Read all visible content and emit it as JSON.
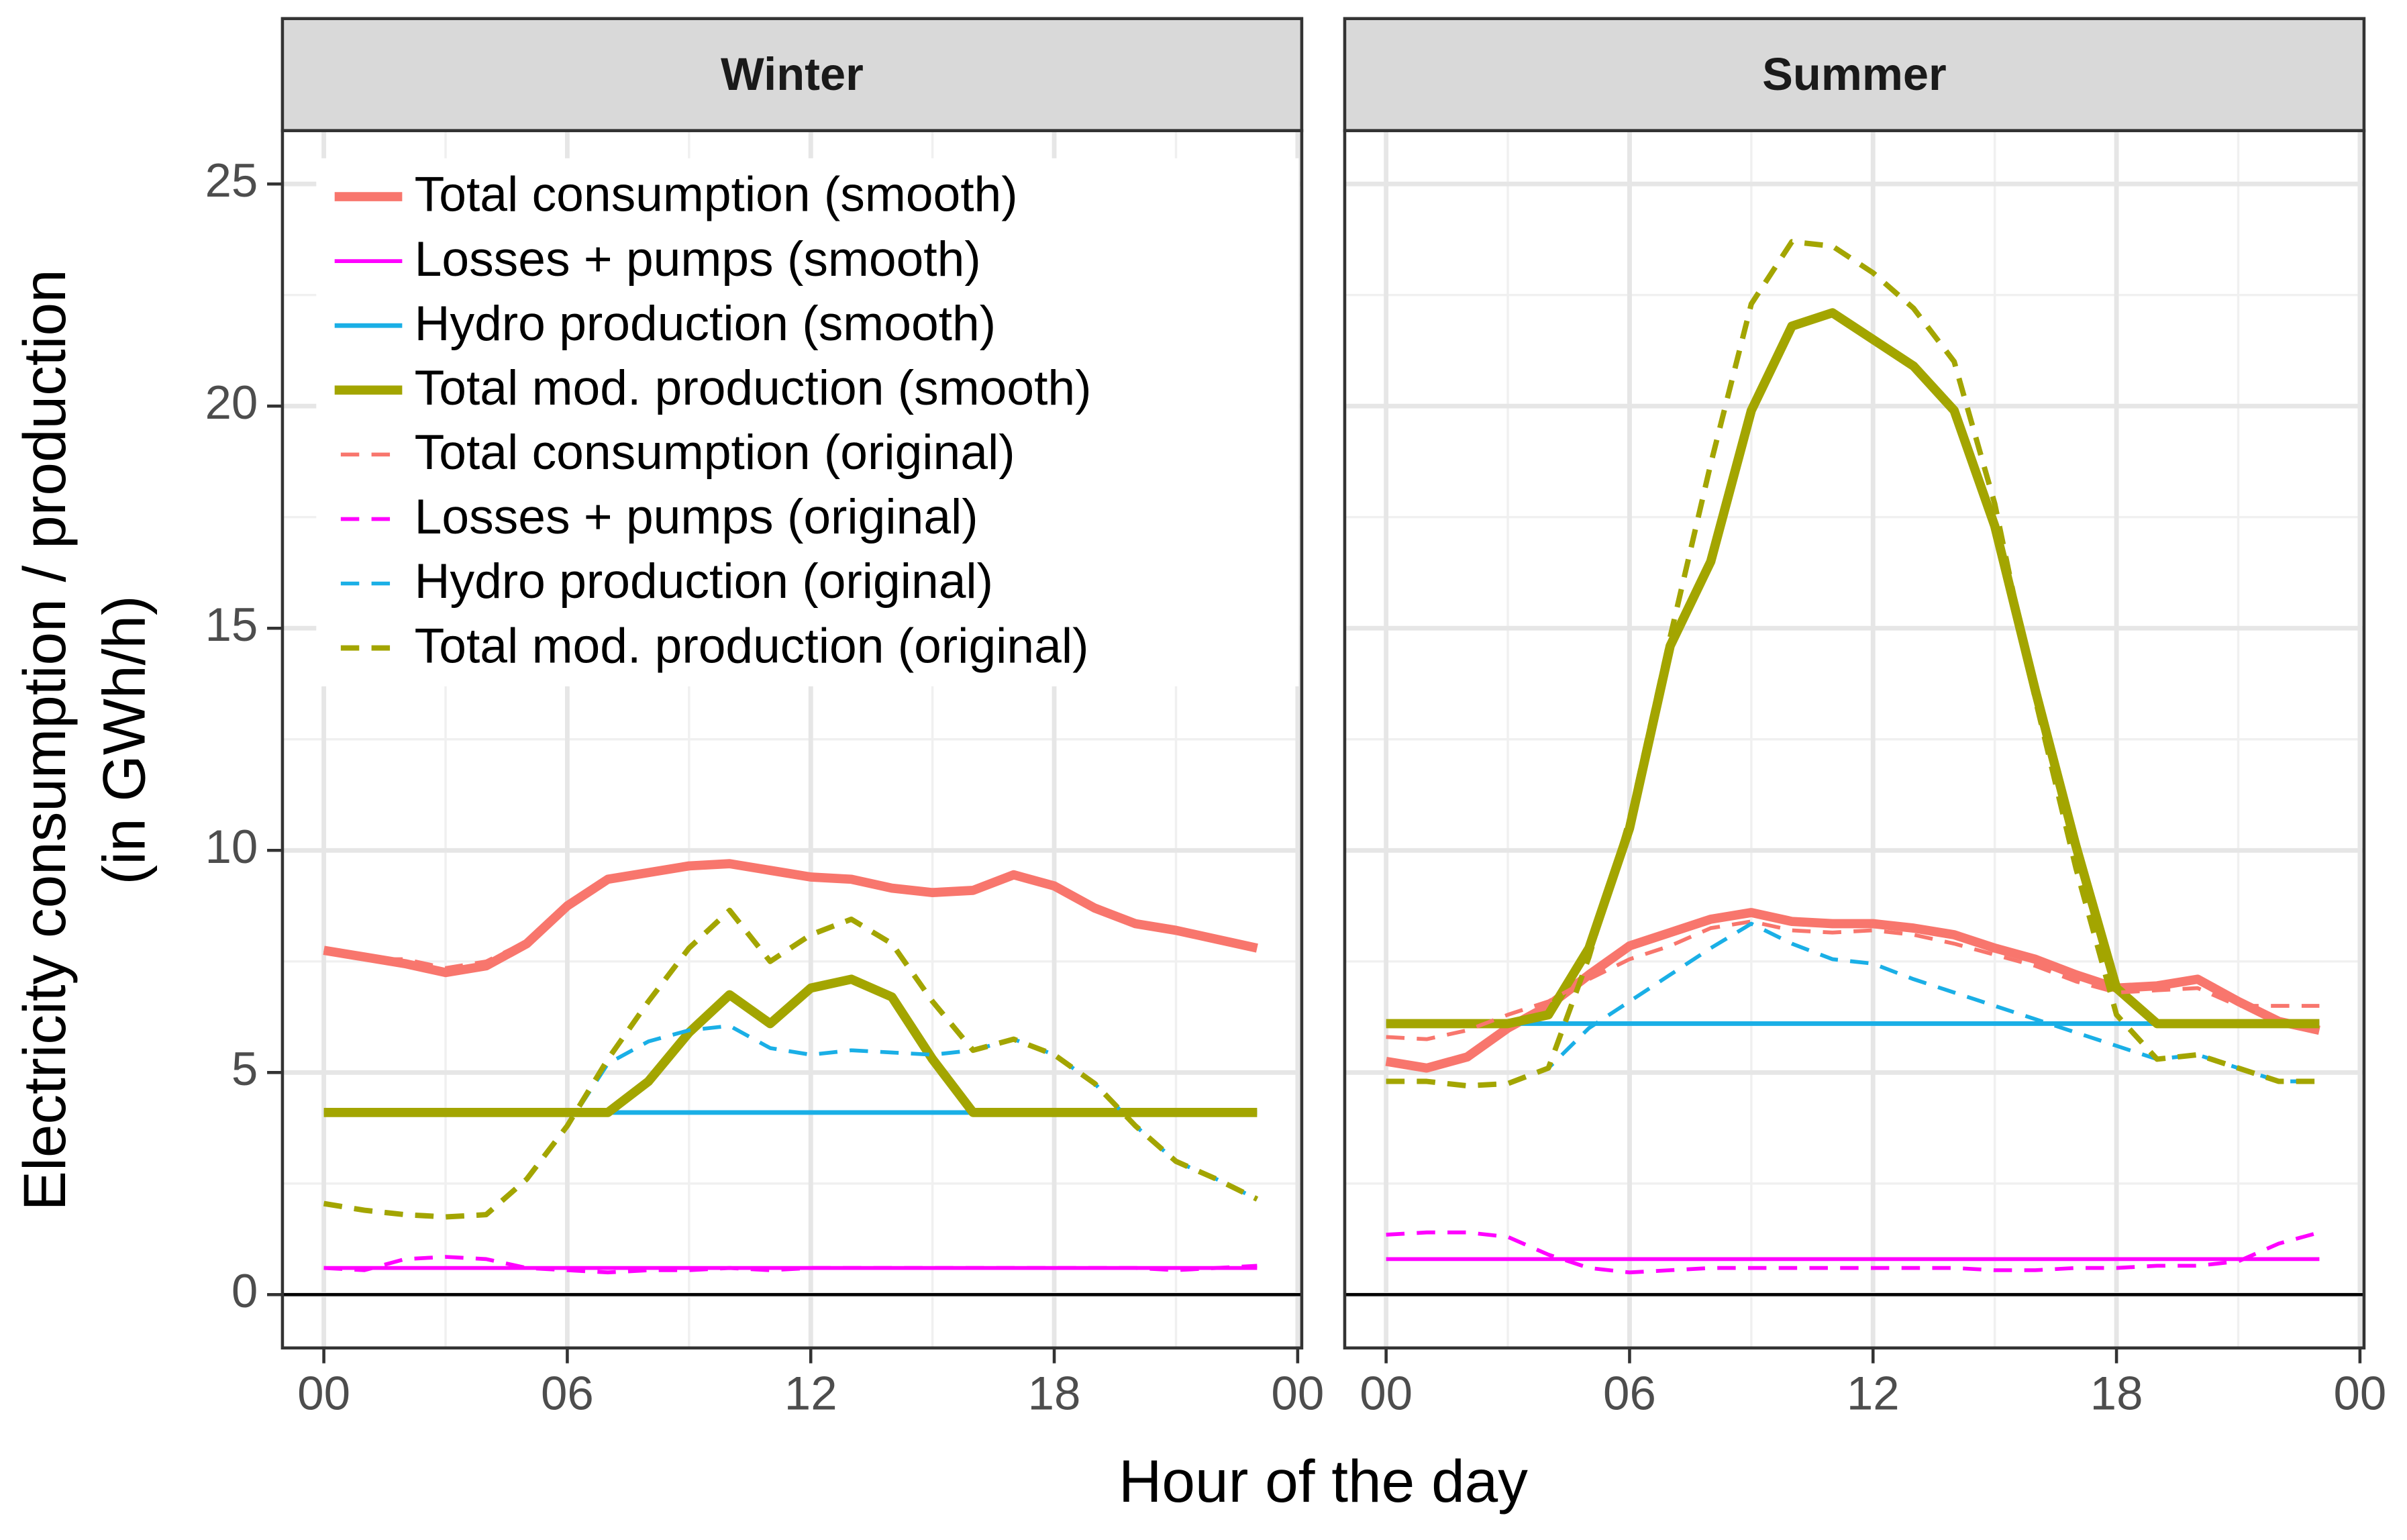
{
  "chart_data": [
    {
      "type": "line",
      "title": "Winter",
      "x": [
        0,
        1,
        2,
        3,
        4,
        5,
        6,
        7,
        8,
        9,
        10,
        11,
        12,
        13,
        14,
        15,
        16,
        17,
        18,
        19,
        20,
        21,
        22,
        23
      ],
      "xlim": [
        -1.02,
        24.1
      ],
      "xticks": [
        {
          "value": 0,
          "label": "00"
        },
        {
          "value": 6,
          "label": "06"
        },
        12,
        18,
        {
          "value": 24,
          "label": "00"
        }
      ],
      "ylim": [
        -1.2,
        26.2
      ],
      "yticks": [
        0,
        5,
        10,
        15,
        20,
        25
      ],
      "grid": true,
      "hline": 0,
      "legend": "upper left",
      "series": [
        {
          "name": "Total consumption (smooth)",
          "color": "#F8766D",
          "width": 6,
          "dashed": false,
          "values": [
            7.75,
            7.6,
            7.45,
            7.25,
            7.4,
            7.9,
            8.75,
            9.35,
            9.5,
            9.65,
            9.7,
            9.55,
            9.4,
            9.35,
            9.15,
            9.05,
            9.1,
            9.45,
            9.2,
            8.7,
            8.35,
            8.2,
            8.0,
            7.8
          ]
        },
        {
          "name": "Losses + pumps (smooth)",
          "color": "#FF00FF",
          "width": 2.5,
          "dashed": false,
          "values": [
            0.6,
            0.6,
            0.6,
            0.6,
            0.6,
            0.6,
            0.6,
            0.6,
            0.6,
            0.6,
            0.6,
            0.6,
            0.6,
            0.6,
            0.6,
            0.6,
            0.6,
            0.6,
            0.6,
            0.6,
            0.6,
            0.6,
            0.6,
            0.6
          ]
        },
        {
          "name": "Hydro production (smooth)",
          "color": "#1AAFE6",
          "width": 3,
          "dashed": false,
          "values": [
            4.1,
            4.1,
            4.1,
            4.1,
            4.1,
            4.1,
            4.1,
            4.1,
            4.1,
            4.1,
            4.1,
            4.1,
            4.1,
            4.1,
            4.1,
            4.1,
            4.1,
            4.1,
            4.1,
            4.1,
            4.1,
            4.1,
            4.1,
            4.1
          ]
        },
        {
          "name": "Total mod. production (smooth)",
          "color": "#A3A500",
          "width": 6,
          "dashed": false,
          "values": [
            4.1,
            4.1,
            4.1,
            4.1,
            4.1,
            4.1,
            4.1,
            4.1,
            4.8,
            5.9,
            6.75,
            6.1,
            6.9,
            7.1,
            6.7,
            5.3,
            4.1,
            4.1,
            4.1,
            4.1,
            4.1,
            4.1,
            4.1,
            4.1
          ]
        },
        {
          "name": "Total consumption (original)",
          "color": "#F8766D",
          "width": 2.5,
          "dashed": true,
          "values": [
            7.75,
            7.55,
            7.55,
            7.35,
            7.5,
            7.95,
            8.75,
            9.35,
            9.5,
            9.65,
            9.7,
            9.55,
            9.4,
            9.35,
            9.15,
            9.05,
            9.1,
            9.45,
            9.2,
            8.7,
            8.35,
            8.2,
            8.0,
            7.8
          ]
        },
        {
          "name": "Losses + pumps (original)",
          "color": "#FF00FF",
          "width": 2.5,
          "dashed": true,
          "values": [
            0.6,
            0.55,
            0.8,
            0.85,
            0.8,
            0.6,
            0.55,
            0.5,
            0.55,
            0.55,
            0.6,
            0.55,
            0.6,
            0.6,
            0.6,
            0.6,
            0.6,
            0.6,
            0.6,
            0.6,
            0.6,
            0.55,
            0.6,
            0.65
          ]
        },
        {
          "name": "Hydro production (original)",
          "color": "#1AAFE6",
          "width": 2.5,
          "dashed": true,
          "values": [
            2.05,
            1.9,
            1.8,
            1.75,
            1.8,
            2.6,
            3.8,
            5.2,
            5.7,
            5.95,
            6.05,
            5.55,
            5.4,
            5.5,
            5.45,
            5.4,
            5.5,
            5.75,
            5.4,
            4.75,
            3.8,
            3.0,
            2.6,
            2.15
          ]
        },
        {
          "name": "Total mod. production (original)",
          "color": "#A3A500",
          "width": 3.5,
          "dashed": true,
          "values": [
            2.05,
            1.9,
            1.8,
            1.75,
            1.8,
            2.6,
            3.8,
            5.3,
            6.6,
            7.8,
            8.65,
            7.5,
            8.1,
            8.45,
            7.9,
            6.6,
            5.5,
            5.75,
            5.4,
            4.75,
            3.8,
            3.0,
            2.6,
            2.15
          ]
        }
      ]
    },
    {
      "type": "line",
      "title": "Summer",
      "x": [
        0,
        1,
        2,
        3,
        4,
        5,
        6,
        7,
        8,
        9,
        10,
        11,
        12,
        13,
        14,
        15,
        16,
        17,
        18,
        19,
        20,
        21,
        22,
        23
      ],
      "xlim": [
        -1.02,
        24.1
      ],
      "xticks": [
        {
          "value": 0,
          "label": "00"
        },
        {
          "value": 6,
          "label": "06"
        },
        12,
        18,
        {
          "value": 24,
          "label": "00"
        }
      ],
      "ylim": [
        -1.2,
        26.2
      ],
      "yticks": [
        0,
        5,
        10,
        15,
        20,
        25
      ],
      "grid": true,
      "hline": 0,
      "series": [
        {
          "color": "#F8766D",
          "width": 6,
          "dashed": false,
          "values": [
            5.25,
            5.1,
            5.35,
            6.0,
            6.5,
            7.2,
            7.85,
            8.15,
            8.45,
            8.6,
            8.4,
            8.35,
            8.35,
            8.25,
            8.1,
            7.8,
            7.55,
            7.2,
            6.9,
            6.95,
            7.1,
            6.6,
            6.15,
            5.95
          ]
        },
        {
          "color": "#FF00FF",
          "width": 2.5,
          "dashed": false,
          "values": [
            0.8,
            0.8,
            0.8,
            0.8,
            0.8,
            0.8,
            0.8,
            0.8,
            0.8,
            0.8,
            0.8,
            0.8,
            0.8,
            0.8,
            0.8,
            0.8,
            0.8,
            0.8,
            0.8,
            0.8,
            0.8,
            0.8,
            0.8,
            0.8
          ]
        },
        {
          "color": "#1AAFE6",
          "width": 3,
          "dashed": false,
          "values": [
            6.1,
            6.1,
            6.1,
            6.1,
            6.1,
            6.1,
            6.1,
            6.1,
            6.1,
            6.1,
            6.1,
            6.1,
            6.1,
            6.1,
            6.1,
            6.1,
            6.1,
            6.1,
            6.1,
            6.1,
            6.1,
            6.1,
            6.1,
            6.1
          ]
        },
        {
          "color": "#A3A500",
          "width": 6,
          "dashed": false,
          "values": [
            6.1,
            6.1,
            6.1,
            6.1,
            6.3,
            7.8,
            10.5,
            14.6,
            16.5,
            19.9,
            21.8,
            22.1,
            21.5,
            20.9,
            19.9,
            17.3,
            13.6,
            10.1,
            6.9,
            6.1,
            6.1,
            6.1,
            6.1,
            6.1
          ]
        },
        {
          "color": "#F8766D",
          "width": 2.5,
          "dashed": true,
          "values": [
            5.8,
            5.75,
            5.95,
            6.3,
            6.6,
            7.1,
            7.55,
            7.85,
            8.25,
            8.4,
            8.2,
            8.15,
            8.2,
            8.1,
            7.9,
            7.65,
            7.4,
            7.05,
            6.8,
            6.85,
            6.9,
            6.5,
            6.5,
            6.5
          ]
        },
        {
          "color": "#FF00FF",
          "width": 2.5,
          "dashed": true,
          "values": [
            1.35,
            1.4,
            1.4,
            1.3,
            0.9,
            0.6,
            0.5,
            0.55,
            0.6,
            0.6,
            0.6,
            0.6,
            0.6,
            0.6,
            0.6,
            0.55,
            0.55,
            0.6,
            0.6,
            0.65,
            0.65,
            0.75,
            1.15,
            1.4
          ]
        },
        {
          "color": "#1AAFE6",
          "width": 2.5,
          "dashed": true,
          "values": [
            4.8,
            4.8,
            4.7,
            4.75,
            5.1,
            6.0,
            6.6,
            7.2,
            7.8,
            8.35,
            7.9,
            7.55,
            7.45,
            7.1,
            6.8,
            6.5,
            6.2,
            5.9,
            5.6,
            5.3,
            5.4,
            5.1,
            4.8,
            4.8
          ]
        },
        {
          "color": "#A3A500",
          "width": 3.5,
          "dashed": true,
          "values": [
            4.8,
            4.8,
            4.7,
            4.75,
            5.1,
            7.6,
            10.7,
            14.8,
            18.7,
            22.3,
            23.7,
            23.6,
            23.0,
            22.2,
            21.0,
            17.8,
            13.4,
            9.6,
            6.3,
            5.3,
            5.4,
            5.1,
            4.8,
            4.8
          ]
        }
      ]
    }
  ],
  "x_label": "Hour of the day",
  "y_label": [
    "Electricity consumption / production",
    "(in GWh/h)"
  ]
}
